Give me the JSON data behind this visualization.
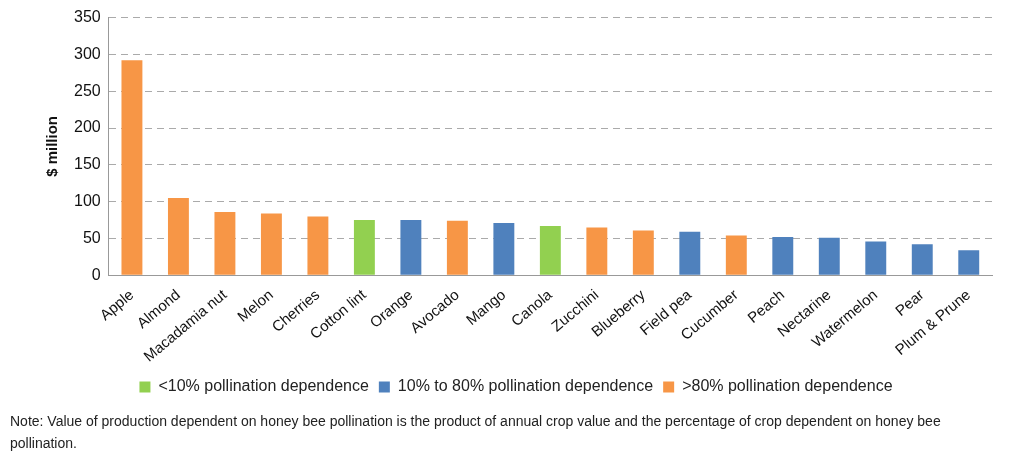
{
  "chart_data": {
    "type": "bar",
    "ylabel": "$ million",
    "categories": [
      "Apple",
      "Almond",
      "Macadamia nut",
      "Melon",
      "Cherries",
      "Cotton lint",
      "Orange",
      "Avocado",
      "Mango",
      "Canola",
      "Zucchini",
      "Blueberry",
      "Field pea",
      "Cucumber",
      "Peach",
      "Nectarine",
      "Watermelon",
      "Pear",
      "Plum & Prune"
    ],
    "series": [
      {
        "name": "<10% pollination dependence",
        "color": "#92d050",
        "values": [
          null,
          null,
          null,
          null,
          null,
          75,
          null,
          null,
          null,
          67,
          null,
          null,
          null,
          null,
          null,
          null,
          null,
          null,
          null
        ]
      },
      {
        "name": "10% to 80% pollination dependence",
        "color": "#4f81bd",
        "values": [
          null,
          null,
          null,
          null,
          null,
          null,
          75,
          null,
          71,
          null,
          null,
          null,
          59,
          null,
          52,
          51,
          46,
          42,
          34
        ]
      },
      {
        "name": ">80% pollination dependence",
        "color": "#f79646",
        "values": [
          292,
          105,
          86,
          84,
          80,
          null,
          null,
          74,
          null,
          null,
          65,
          61,
          null,
          54,
          null,
          null,
          null,
          null,
          null
        ]
      }
    ],
    "ylim": [
      0,
      350
    ],
    "yticks": [
      0,
      50,
      100,
      150,
      200,
      250,
      300,
      350
    ],
    "grid": "y",
    "legend": "bottom",
    "annotations": [
      "Note: Value of production dependent on honey bee pollination is the product of annual crop value and the percentage of crop dependent on honey bee pollination."
    ]
  }
}
